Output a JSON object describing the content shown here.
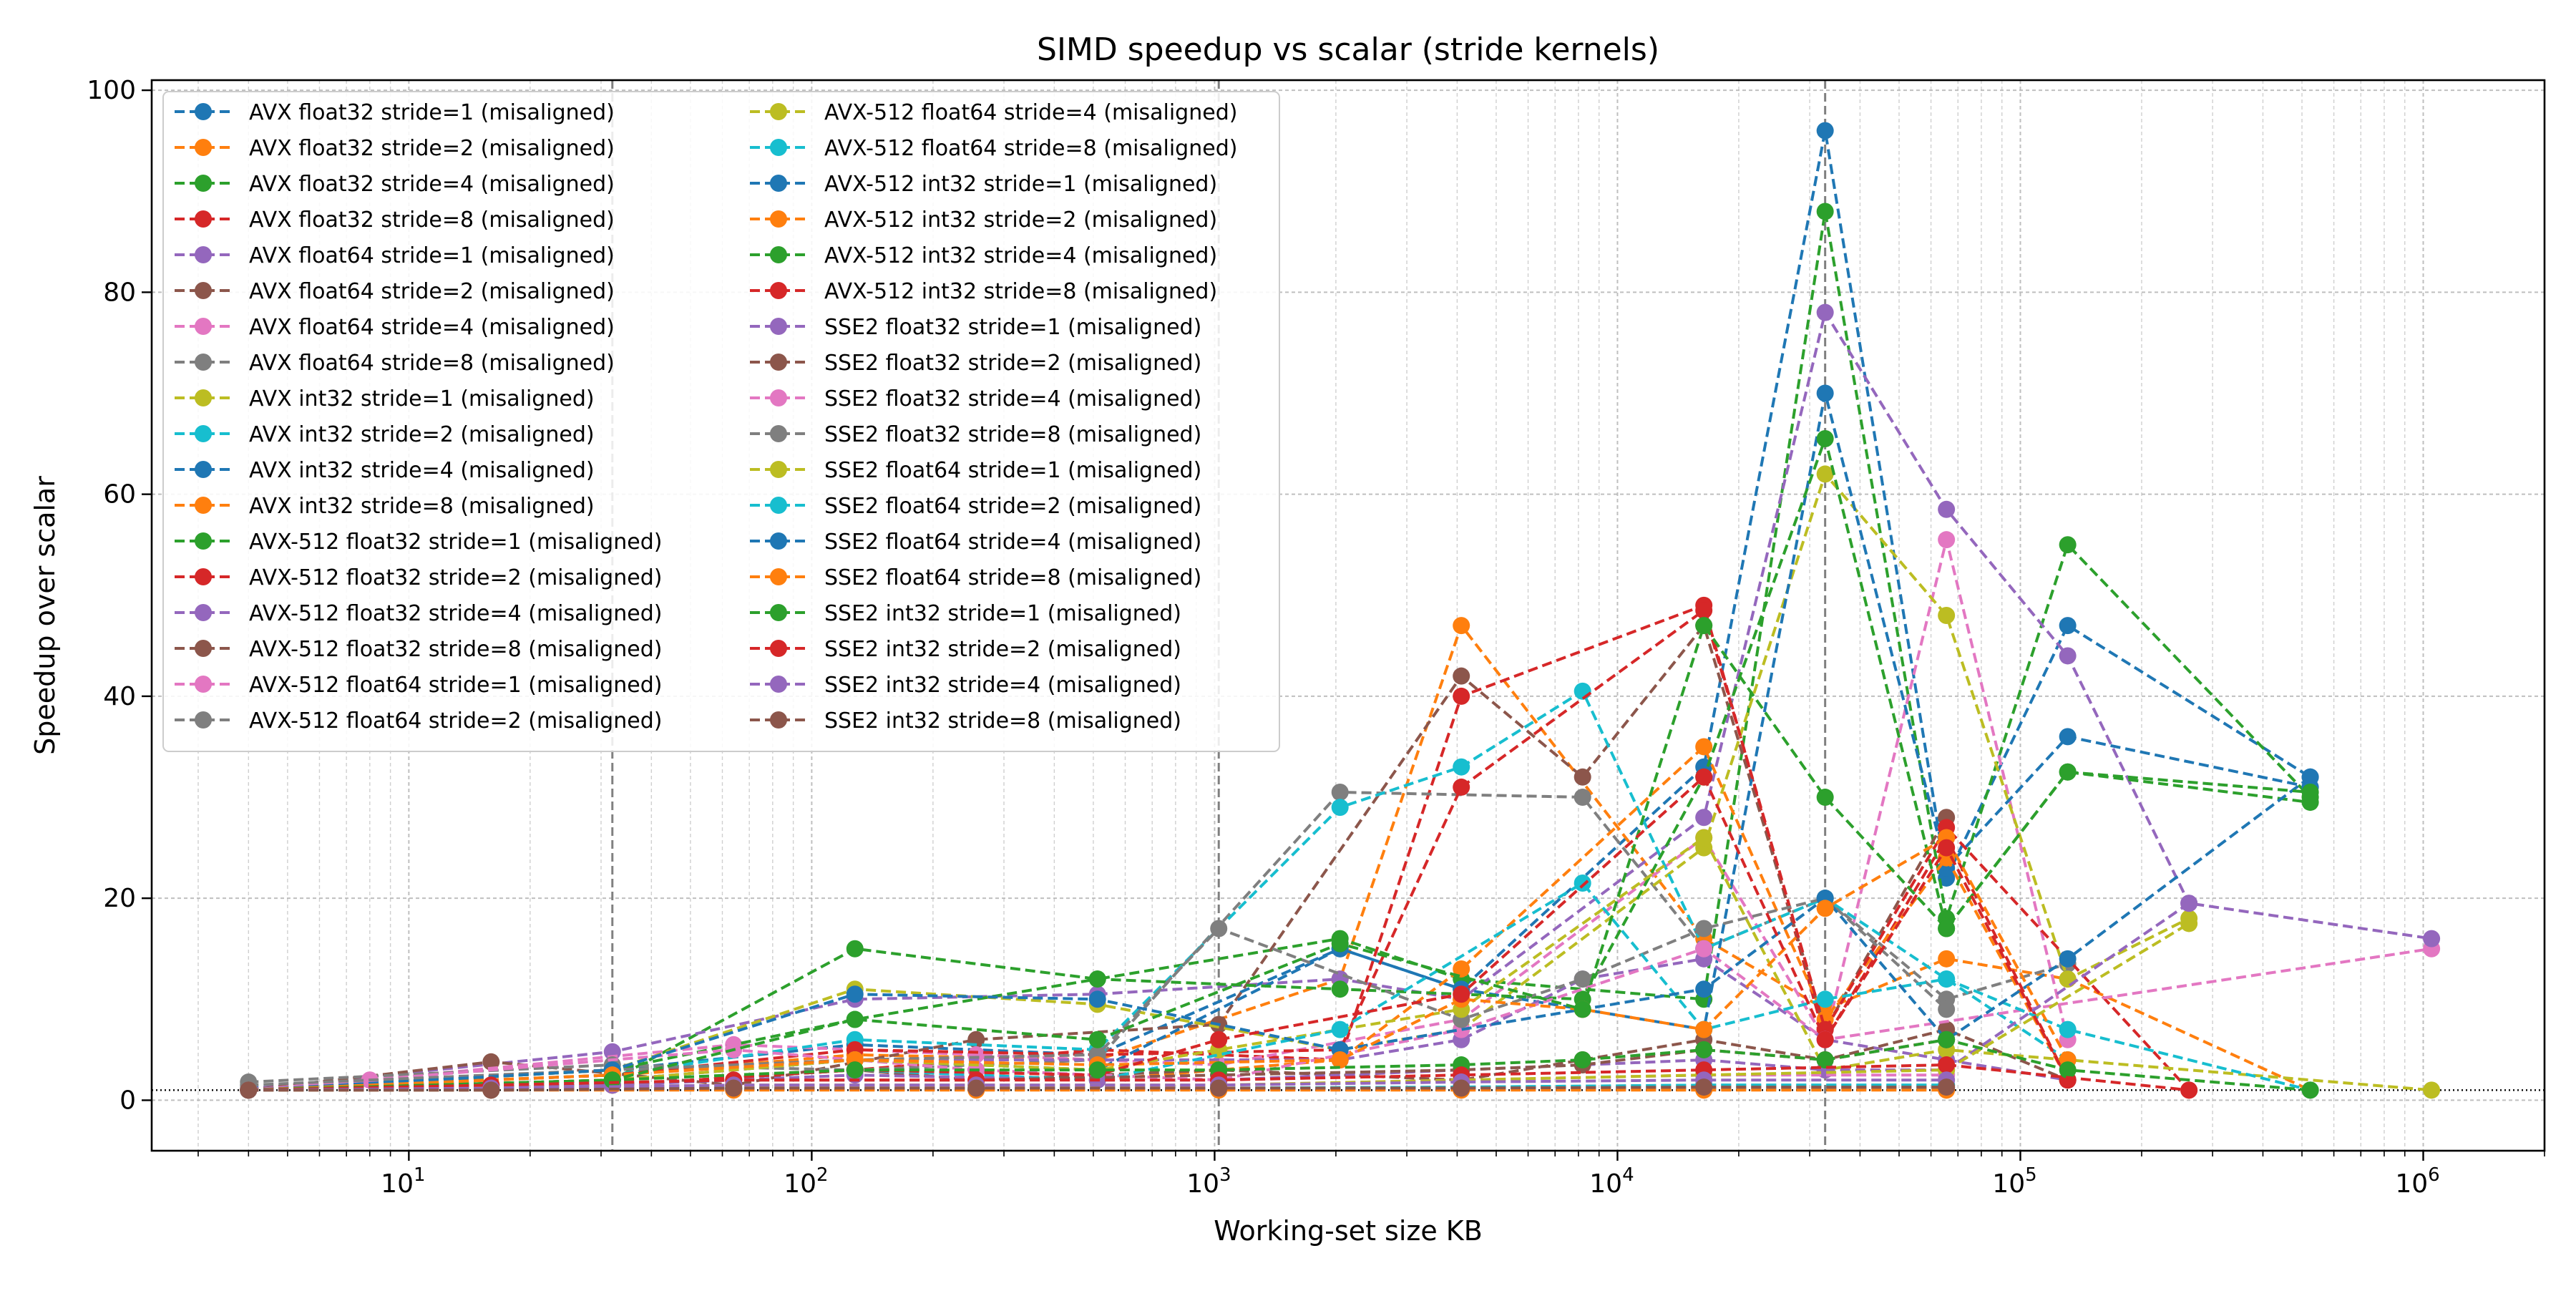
{
  "chart_data": {
    "type": "line",
    "title": "SIMD speedup vs scalar (stride kernels)",
    "xlabel": "Working-set size KB",
    "ylabel": "Speedup over scalar",
    "x_scale": "log",
    "xlim": [
      2.3,
      2000000
    ],
    "ylim": [
      -5,
      101
    ],
    "yticks": [
      0,
      20,
      40,
      60,
      80,
      100
    ],
    "xticks": [
      {
        "value": 10,
        "base": "10",
        "exp": "1"
      },
      {
        "value": 100,
        "base": "10",
        "exp": "2"
      },
      {
        "value": 1000,
        "base": "10",
        "exp": "3"
      },
      {
        "value": 10000,
        "base": "10",
        "exp": "4"
      },
      {
        "value": 100000,
        "base": "10",
        "exp": "5"
      },
      {
        "value": 1000000,
        "base": "10",
        "exp": "6"
      }
    ],
    "grid": true,
    "legend_position": "upper-left",
    "legend_columns": 2,
    "reference_lines": [
      {
        "orientation": "horizontal",
        "value": 1,
        "style": "dotted",
        "color": "#000000"
      },
      {
        "orientation": "vertical",
        "value": 32,
        "style": "dashed",
        "color": "#808080"
      },
      {
        "orientation": "vertical",
        "value": 1024,
        "style": "dashed",
        "color": "#808080"
      },
      {
        "orientation": "vertical",
        "value": 32768,
        "style": "dashed",
        "color": "#808080"
      }
    ],
    "series": [
      {
        "name": "AVX float32 stride=1 (misaligned)",
        "color": "#1f77b4",
        "x": [
          4,
          32,
          128,
          512,
          2048,
          4096,
          16384,
          32768,
          65536,
          131072,
          524288
        ],
        "y": [
          1.2,
          3.0,
          5.5,
          4.5,
          15,
          11,
          33,
          96,
          22,
          47,
          32
        ]
      },
      {
        "name": "AVX float32 stride=2 (misaligned)",
        "color": "#ff7f0e",
        "x": [
          4,
          32,
          128,
          512,
          2048,
          4096,
          16384,
          32768,
          65536,
          131072,
          524288
        ],
        "y": [
          1.1,
          2.5,
          4.5,
          4.0,
          12,
          47,
          16,
          9,
          14,
          12,
          1.0
        ]
      },
      {
        "name": "AVX float32 stride=4 (misaligned)",
        "color": "#2ca02c",
        "x": [
          4,
          32,
          128,
          512,
          2048,
          4096,
          16384,
          32768,
          65536,
          131072,
          524288
        ],
        "y": [
          1.0,
          2.0,
          15,
          12,
          16,
          12,
          10,
          88,
          18,
          55,
          30
        ]
      },
      {
        "name": "AVX float32 stride=8 (misaligned)",
        "color": "#d62728",
        "x": [
          4,
          32,
          128,
          512,
          2048,
          4096,
          16384,
          32768,
          65536,
          131072
        ],
        "y": [
          1.0,
          1.5,
          3.0,
          5.0,
          4.0,
          40,
          49,
          6,
          26,
          2
        ]
      },
      {
        "name": "AVX float64 stride=1 (misaligned)",
        "color": "#9467bd",
        "x": [
          4,
          32,
          128,
          512,
          2048,
          4096,
          16384,
          32768,
          65536,
          131072,
          262144
        ],
        "y": [
          1.1,
          4.8,
          10,
          10.5,
          12,
          10,
          28,
          78,
          58.5,
          44,
          19.5
        ]
      },
      {
        "name": "AVX float64 stride=2 (misaligned)",
        "color": "#8c564b",
        "x": [
          4,
          16,
          64,
          256,
          1024,
          4096,
          8192,
          16384,
          32768,
          65536
        ],
        "y": [
          1.0,
          3.8,
          1.5,
          6,
          7.5,
          42,
          32,
          47,
          7,
          28
        ]
      },
      {
        "name": "AVX float64 stride=4 (misaligned)",
        "color": "#e377c2",
        "x": [
          4,
          8,
          64,
          256,
          1024,
          4096,
          16384,
          32768,
          65536,
          131072
        ],
        "y": [
          1.0,
          2.0,
          5.5,
          4.5,
          3.5,
          8,
          26,
          6,
          55.5,
          6
        ]
      },
      {
        "name": "AVX float64 stride=8 (misaligned)",
        "color": "#7f7f7f",
        "x": [
          4,
          32,
          128,
          512,
          2048,
          8192,
          16384,
          32768,
          65536,
          131072
        ],
        "y": [
          1.8,
          3.5,
          3.0,
          4.0,
          30.5,
          30,
          15,
          20,
          10,
          13.5
        ]
      },
      {
        "name": "AVX int32 stride=1 (misaligned)",
        "color": "#bcbd22",
        "x": [
          4,
          32,
          128,
          512,
          2048,
          4096,
          16384,
          32768,
          65536,
          131072,
          262144
        ],
        "y": [
          1.0,
          3.0,
          11,
          9.5,
          5,
          7,
          25,
          62,
          48,
          12,
          18
        ]
      },
      {
        "name": "AVX int32 stride=2 (misaligned)",
        "color": "#17becf",
        "x": [
          4,
          32,
          128,
          512,
          2048,
          4096,
          8192,
          16384,
          32768,
          65536,
          131072
        ],
        "y": [
          1.0,
          2.5,
          6,
          5,
          29,
          33,
          40.5,
          15,
          20,
          12,
          4
        ]
      },
      {
        "name": "AVX int32 stride=4 (misaligned)",
        "color": "#1f77b4",
        "x": [
          4,
          32,
          128,
          512,
          2048,
          4096,
          16384,
          32768,
          65536,
          131072,
          524288
        ],
        "y": [
          1.0,
          2.0,
          4,
          3,
          15,
          11,
          7,
          70,
          23,
          36,
          31
        ]
      },
      {
        "name": "AVX int32 stride=8 (misaligned)",
        "color": "#ff7f0e",
        "x": [
          4,
          32,
          128,
          512,
          2048,
          4096,
          16384,
          32768,
          65536,
          131072
        ],
        "y": [
          1.0,
          1.5,
          3,
          2,
          4,
          13,
          35,
          8,
          24,
          2
        ]
      },
      {
        "name": "AVX-512 float32 stride=1 (misaligned)",
        "color": "#2ca02c",
        "x": [
          4,
          32,
          128,
          512,
          2048,
          8192,
          16384,
          32768,
          65536,
          131072,
          524288
        ],
        "y": [
          1.0,
          3.0,
          8,
          12,
          11,
          10,
          32,
          65.5,
          17,
          32.5,
          29.5
        ]
      },
      {
        "name": "AVX-512 float32 stride=2 (misaligned)",
        "color": "#d62728",
        "x": [
          4,
          32,
          128,
          512,
          2048,
          4096,
          16384,
          32768,
          65536,
          262144
        ],
        "y": [
          1.0,
          2.5,
          5,
          4.5,
          5,
          31,
          48.5,
          7,
          27,
          1.0
        ]
      },
      {
        "name": "AVX-512 float32 stride=4 (misaligned)",
        "color": "#9467bd",
        "x": [
          4,
          32,
          128,
          512,
          2048,
          4096,
          8192,
          16384,
          32768,
          65536,
          131072
        ],
        "y": [
          1.0,
          2.0,
          4,
          4,
          4,
          6,
          12,
          14,
          6,
          4,
          2
        ]
      },
      {
        "name": "AVX-512 float32 stride=8 (misaligned)",
        "color": "#8c564b",
        "x": [
          4,
          32,
          128,
          256,
          1024,
          4096,
          8192,
          16384,
          32768,
          65536,
          131072
        ],
        "y": [
          1.0,
          1.5,
          3,
          2,
          3,
          2,
          4,
          6,
          4,
          7,
          2
        ]
      },
      {
        "name": "AVX-512 float64 stride=1 (misaligned)",
        "color": "#e377c2",
        "x": [
          4,
          8,
          64,
          256,
          1024,
          4096,
          16384,
          32768,
          1048576
        ],
        "y": [
          1.0,
          2.0,
          5,
          3,
          2,
          7,
          15,
          6,
          15
        ]
      },
      {
        "name": "AVX-512 float64 stride=2 (misaligned)",
        "color": "#7f7f7f",
        "x": [
          4,
          32,
          128,
          512,
          1024,
          4096,
          8192,
          16384,
          32768,
          65536
        ],
        "y": [
          1.5,
          3.0,
          4,
          4.5,
          17,
          8,
          12,
          17,
          20,
          9
        ]
      },
      {
        "name": "AVX-512 float64 stride=4 (misaligned)",
        "color": "#bcbd22",
        "x": [
          4,
          32,
          128,
          512,
          1024,
          4096,
          16384,
          32768,
          65536,
          1048576
        ],
        "y": [
          1.0,
          2.0,
          4,
          3,
          5,
          9,
          26,
          3,
          5,
          1.0
        ]
      },
      {
        "name": "AVX-512 float64 stride=8 (misaligned)",
        "color": "#17becf",
        "x": [
          4,
          32,
          128,
          512,
          2048,
          8192,
          16384,
          32768,
          65536,
          131072,
          524288
        ],
        "y": [
          1.0,
          1.5,
          3,
          2,
          7,
          21.5,
          7,
          10,
          12,
          7,
          1.0
        ]
      },
      {
        "name": "AVX-512 int32 stride=1 (misaligned)",
        "color": "#1f77b4",
        "x": [
          4,
          32,
          128,
          512,
          2048,
          8192,
          16384,
          32768,
          65536,
          131072,
          524288
        ],
        "y": [
          1.0,
          3.0,
          10.5,
          10,
          5,
          9,
          11,
          20,
          6,
          14,
          32
        ]
      },
      {
        "name": "AVX-512 int32 stride=2 (misaligned)",
        "color": "#ff7f0e",
        "x": [
          4,
          32,
          128,
          512,
          2048,
          4096,
          8192,
          16384,
          32768,
          65536,
          131072
        ],
        "y": [
          1.0,
          2.5,
          4,
          3.5,
          4,
          10,
          9,
          7,
          19,
          26,
          4
        ]
      },
      {
        "name": "AVX-512 int32 stride=4 (misaligned)",
        "color": "#2ca02c",
        "x": [
          4,
          32,
          128,
          512,
          2048,
          8192,
          16384,
          32768,
          65536,
          131072,
          524288
        ],
        "y": [
          1.0,
          2.0,
          8,
          6,
          15.5,
          9,
          47,
          30,
          17,
          32.5,
          30.5
        ]
      },
      {
        "name": "AVX-512 int32 stride=8 (misaligned)",
        "color": "#d62728",
        "x": [
          4,
          32,
          128,
          512,
          1024,
          4096,
          16384,
          32768,
          65536,
          131072
        ],
        "y": [
          1.0,
          1.5,
          3,
          2.5,
          6,
          10.5,
          32,
          6,
          25,
          2
        ]
      },
      {
        "name": "SSE2 float32 stride=1 (misaligned)",
        "color": "#9467bd",
        "x": [
          4,
          32,
          128,
          512,
          1024,
          4096,
          16384,
          32768,
          65536,
          262144,
          1048576
        ],
        "y": [
          1.0,
          1.5,
          2.5,
          2,
          2,
          3,
          4,
          3,
          3,
          19.5,
          16
        ]
      },
      {
        "name": "SSE2 float32 stride=2 (misaligned)",
        "color": "#8c564b",
        "x": [
          4,
          16,
          64,
          256,
          1024,
          4096,
          8192,
          16384,
          32768,
          65536
        ],
        "y": [
          1.0,
          1.5,
          2,
          2,
          2.5,
          3,
          3.5,
          5,
          4,
          6
        ]
      },
      {
        "name": "SSE2 float32 stride=4 (misaligned)",
        "color": "#e377c2",
        "x": [
          4,
          16,
          64,
          256,
          1024,
          4096,
          16384,
          65536
        ],
        "y": [
          1.0,
          1.2,
          1.5,
          1.5,
          1.5,
          2,
          2.5,
          2.5
        ]
      },
      {
        "name": "SSE2 float32 stride=8 (misaligned)",
        "color": "#7f7f7f",
        "x": [
          4,
          16,
          64,
          256,
          1024,
          4096,
          16384,
          65536
        ],
        "y": [
          1.0,
          1.1,
          1.2,
          1.2,
          1.2,
          1.3,
          1.5,
          1.5
        ]
      },
      {
        "name": "SSE2 float64 stride=1 (misaligned)",
        "color": "#bcbd22",
        "x": [
          4,
          16,
          64,
          256,
          1024,
          4096,
          16384,
          65536,
          262144
        ],
        "y": [
          1.0,
          1.2,
          1.5,
          1.5,
          1.5,
          2,
          2.5,
          3,
          17.5
        ]
      },
      {
        "name": "SSE2 float64 stride=2 (misaligned)",
        "color": "#17becf",
        "x": [
          4,
          16,
          64,
          256,
          1024,
          4096,
          16384,
          65536
        ],
        "y": [
          1.0,
          1.1,
          1.2,
          1.2,
          1.2,
          1.3,
          1.5,
          1.5
        ]
      },
      {
        "name": "SSE2 float64 stride=4 (misaligned)",
        "color": "#1f77b4",
        "x": [
          4,
          16,
          64,
          256,
          1024,
          4096,
          16384,
          65536
        ],
        "y": [
          1.0,
          1.0,
          1.1,
          1.1,
          1.1,
          1.2,
          1.2,
          1.2
        ]
      },
      {
        "name": "SSE2 float64 stride=8 (misaligned)",
        "color": "#ff7f0e",
        "x": [
          4,
          16,
          64,
          256,
          1024,
          4096,
          16384,
          65536
        ],
        "y": [
          1.0,
          1.0,
          1.0,
          1.0,
          1.0,
          1.0,
          1.0,
          1.0
        ]
      },
      {
        "name": "SSE2 int32 stride=1 (misaligned)",
        "color": "#2ca02c",
        "x": [
          4,
          32,
          128,
          512,
          1024,
          4096,
          8192,
          16384,
          32768,
          65536,
          131072,
          524288
        ],
        "y": [
          1.0,
          2.0,
          3,
          3,
          3,
          3.5,
          4,
          5,
          4,
          6,
          3,
          1.0
        ]
      },
      {
        "name": "SSE2 int32 stride=2 (misaligned)",
        "color": "#d62728",
        "x": [
          4,
          16,
          64,
          256,
          1024,
          4096,
          16384,
          65536,
          262144
        ],
        "y": [
          1.0,
          1.5,
          2,
          2,
          2,
          2.5,
          3,
          3.5,
          1.0
        ]
      },
      {
        "name": "SSE2 int32 stride=4 (misaligned)",
        "color": "#9467bd",
        "x": [
          4,
          16,
          64,
          256,
          1024,
          4096,
          16384,
          65536
        ],
        "y": [
          1.0,
          1.2,
          1.5,
          1.5,
          1.5,
          1.8,
          2,
          2
        ]
      },
      {
        "name": "SSE2 int32 stride=8 (misaligned)",
        "color": "#8c564b",
        "x": [
          4,
          16,
          64,
          256,
          1024,
          4096,
          16384,
          65536
        ],
        "y": [
          1.0,
          1.0,
          1.2,
          1.2,
          1.2,
          1.2,
          1.3,
          1.3
        ]
      }
    ]
  }
}
